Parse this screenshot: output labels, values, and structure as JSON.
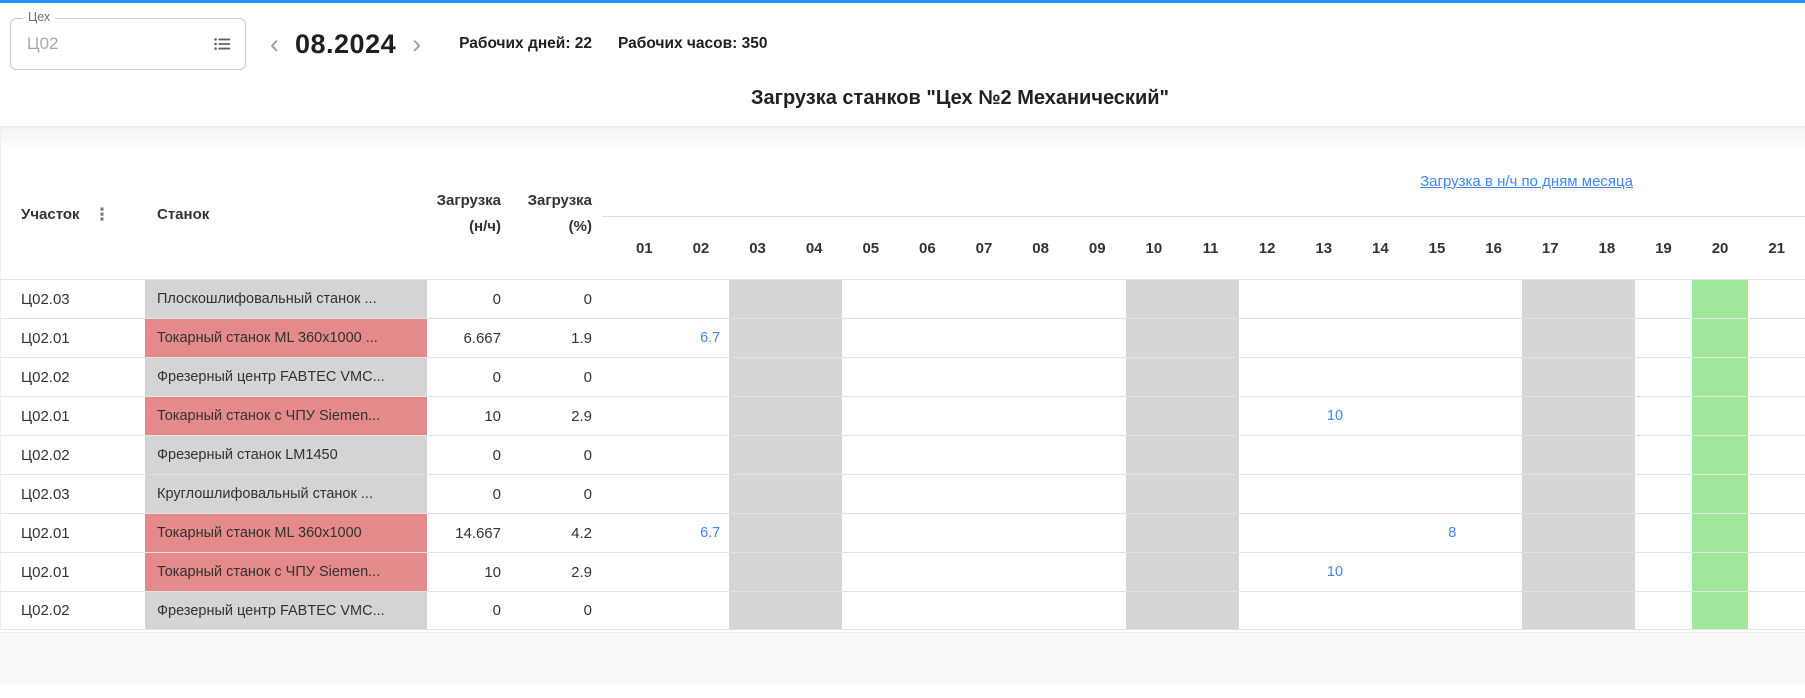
{
  "colors": {
    "top_accent": "#2196f3",
    "link_blue": "#4285f4",
    "weekend_bg": "#d6d6d6",
    "highlight_green_bg": "#9fe79a",
    "machine_red_bg": "#e48a8a",
    "machine_gray_bg": "#d4d4d4"
  },
  "icons": {
    "shop_list_icon": "list-icon",
    "kebab": "⋮",
    "prev": "‹",
    "next": "›"
  },
  "toolbar": {
    "shop_field": {
      "label": "Цех",
      "value": "Ц02"
    },
    "month": "08.2024",
    "working_days": "Рабочих дней: 22",
    "working_hours": "Рабочих часов: 350"
  },
  "title": "Загрузка станков \"Цех №2 Механический\"",
  "table": {
    "headers": {
      "section": "Участок",
      "machine": "Станок",
      "load_nh_line1": "Загрузка",
      "load_nh_line2": "(н/ч)",
      "load_pct_line1": "Загрузка",
      "load_pct_line2": "(%)"
    },
    "days_link": "Загрузка в н/ч по дням месяца",
    "days": [
      "01",
      "02",
      "03",
      "04",
      "05",
      "06",
      "07",
      "08",
      "09",
      "10",
      "11",
      "12",
      "13",
      "14",
      "15",
      "16",
      "17",
      "18",
      "19",
      "20",
      "21"
    ],
    "weekend_days": [
      "03",
      "04",
      "10",
      "11",
      "17",
      "18"
    ],
    "highlighted_day": "20",
    "rows": [
      {
        "section": "Ц02.03",
        "machine": "Плоскошлифовальный станок ...",
        "status": "gray",
        "load_nh": "0",
        "load_pct": "0",
        "day_values": {}
      },
      {
        "section": "Ц02.01",
        "machine": "Токарный станок ML 360x1000 ...",
        "status": "red",
        "load_nh": "6.667",
        "load_pct": "1.9",
        "day_values": {
          "02": "6.7"
        }
      },
      {
        "section": "Ц02.02",
        "machine": "Фрезерный центр FABTEC VMC...",
        "status": "gray",
        "load_nh": "0",
        "load_pct": "0",
        "day_values": {}
      },
      {
        "section": "Ц02.01",
        "machine": "Токарный станок с ЧПУ Siemen...",
        "status": "red",
        "load_nh": "10",
        "load_pct": "2.9",
        "day_values": {
          "13": "10"
        }
      },
      {
        "section": "Ц02.02",
        "machine": "Фрезерный станок LM1450",
        "status": "gray",
        "load_nh": "0",
        "load_pct": "0",
        "day_values": {}
      },
      {
        "section": "Ц02.03",
        "machine": "Круглошлифовальный станок ...",
        "status": "gray",
        "load_nh": "0",
        "load_pct": "0",
        "day_values": {}
      },
      {
        "section": "Ц02.01",
        "machine": "Токарный станок ML 360x1000",
        "status": "red",
        "load_nh": "14.667",
        "load_pct": "4.2",
        "day_values": {
          "02": "6.7",
          "15": "8"
        }
      },
      {
        "section": "Ц02.01",
        "machine": "Токарный станок с ЧПУ Siemen...",
        "status": "red",
        "load_nh": "10",
        "load_pct": "2.9",
        "day_values": {
          "13": "10"
        }
      },
      {
        "section": "Ц02.02",
        "machine": "Фрезерный центр FABTEC VMC...",
        "status": "gray",
        "load_nh": "0",
        "load_pct": "0",
        "day_values": {}
      }
    ]
  }
}
